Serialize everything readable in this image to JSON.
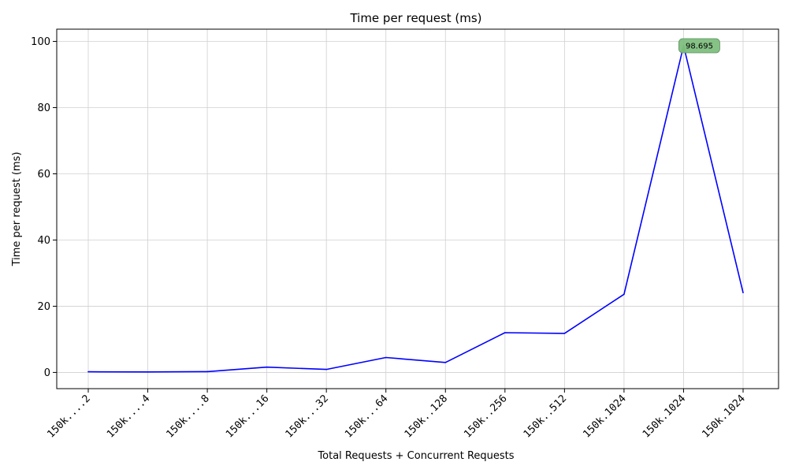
{
  "chart_data": {
    "type": "line",
    "title": "Time per request (ms)",
    "xlabel": "Total Requests + Concurrent Requests",
    "ylabel": "Time per request (ms)",
    "categories": [
      "150k....2",
      "150k....4",
      "150k....8",
      "150k...16",
      "150k...32",
      "150k...64",
      "150k..128",
      "150k..256",
      "150k..512",
      "150k.1024",
      "150k.1024",
      "150k.1024"
    ],
    "series": [
      {
        "values": [
          0.2,
          0.15,
          0.25,
          1.6,
          0.9,
          4.5,
          3.0,
          12.0,
          11.8,
          23.6,
          98.695,
          24.1
        ],
        "color": "#0000ff"
      }
    ],
    "yticks": [
      0,
      20,
      40,
      60,
      80,
      100
    ],
    "ylim": [
      -4.9,
      103.7
    ],
    "grid": true,
    "annotation": {
      "index": 10,
      "text": "98.695",
      "box_color": "#7fbf7f",
      "arrow_color": "#008000"
    }
  }
}
